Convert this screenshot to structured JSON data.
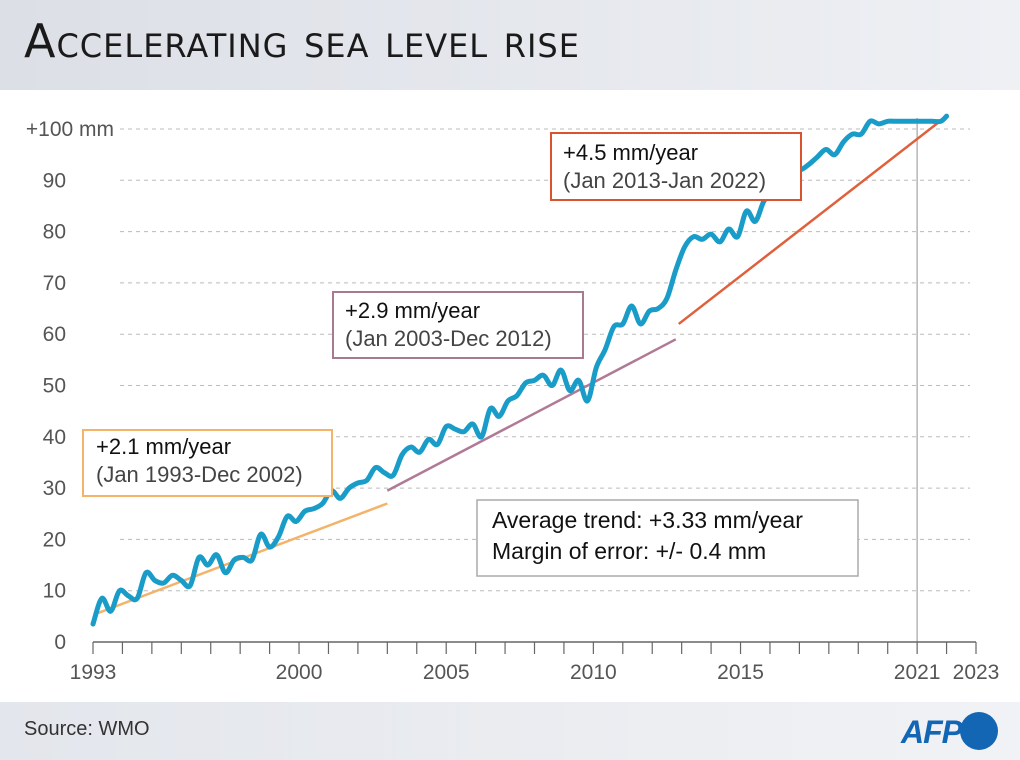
{
  "title": "Accelerating sea level rise",
  "source": "Source: WMO",
  "logo": "AFP",
  "colors": {
    "series": "#1a9cc9",
    "trend1": "#f3b46a",
    "trend2": "#b07a96",
    "trend3": "#e0603c",
    "box1": "#f3b46a",
    "box2": "#a87a90",
    "box3": "#d9542e",
    "grid": "#bbbbbb",
    "axis": "#666666",
    "logo": "#1266b3"
  },
  "chart_data": {
    "type": "line",
    "ylim": [
      0,
      100
    ],
    "xlim": [
      1993,
      2023
    ],
    "y_ticks": [
      0,
      10,
      20,
      30,
      40,
      50,
      60,
      70,
      80,
      90,
      100
    ],
    "y_tick_labels": [
      "0",
      "10",
      "20",
      "30",
      "40",
      "50",
      "60",
      "70",
      "80",
      "90",
      "+100 mm"
    ],
    "x_ticks": [
      1993,
      2000,
      2005,
      2010,
      2015,
      2021,
      2023
    ],
    "x_tick_labels": [
      "1993",
      "2000",
      "2005",
      "2010",
      "2015",
      "2021",
      "2023"
    ],
    "reference_line_x": 2021,
    "grid": "horizontal dashed",
    "series": [
      {
        "x": [
          1993.0,
          1993.3,
          1993.6,
          1993.9,
          1994.2,
          1994.5,
          1994.8,
          1995.1,
          1995.4,
          1995.7,
          1996.0,
          1996.3,
          1996.6,
          1996.9,
          1997.2,
          1997.5,
          1997.8,
          1998.1,
          1998.4,
          1998.7,
          1999.0,
          1999.3,
          1999.6,
          1999.9,
          2000.2,
          2000.5,
          2000.8,
          2001.1,
          2001.4,
          2001.7,
          2002.0,
          2002.3,
          2002.6,
          2002.9,
          2003.2,
          2003.5,
          2003.8,
          2004.1,
          2004.4,
          2004.7,
          2005.0,
          2005.3,
          2005.6,
          2005.9,
          2006.2,
          2006.5,
          2006.8,
          2007.1,
          2007.4,
          2007.7,
          2008.0,
          2008.3,
          2008.6,
          2008.9,
          2009.2,
          2009.5,
          2009.8,
          2010.1,
          2010.4,
          2010.7,
          2011.0,
          2011.3,
          2011.6,
          2011.9,
          2012.2,
          2012.5,
          2012.8,
          2013.1,
          2013.4,
          2013.7,
          2014.0,
          2014.3,
          2014.6,
          2014.9,
          2015.2,
          2015.5,
          2015.8,
          2016.1,
          2016.4,
          2016.7,
          2017.0,
          2017.3,
          2017.6,
          2017.9,
          2018.2,
          2018.5,
          2018.8,
          2019.1,
          2019.4,
          2019.7,
          2020.0,
          2020.3,
          2020.6,
          2020.9,
          2021.2,
          2021.5,
          2021.8,
          2022.0
        ],
        "values": [
          3.5,
          8.5,
          6,
          10,
          9,
          8.5,
          13.5,
          12,
          11.5,
          13,
          12,
          11,
          16.5,
          15,
          17,
          13.5,
          16,
          16.5,
          16,
          21,
          18.5,
          20.5,
          24.5,
          23.5,
          25.5,
          26,
          27,
          29.5,
          28,
          30,
          31,
          31.5,
          34,
          33,
          32.5,
          36.5,
          38,
          37,
          39.5,
          38.5,
          42,
          41.5,
          41,
          42.5,
          40,
          45.5,
          44,
          47,
          48,
          50.5,
          51,
          52,
          50,
          53,
          49,
          51,
          47,
          53.5,
          57,
          61.5,
          62,
          65.5,
          62,
          64.5,
          65,
          67,
          72.5,
          77,
          79,
          78.5,
          79.5,
          78,
          80.5,
          79,
          84,
          82,
          86,
          87.5,
          88,
          93,
          92,
          93,
          94.5,
          96,
          95,
          97.5,
          99,
          99,
          101.5,
          101,
          101.5,
          101.5,
          101.5,
          101.5,
          101.5,
          101.5,
          101.5,
          102.5
        ]
      }
    ],
    "trend_lines": [
      {
        "start": [
          1993.1,
          5.5
        ],
        "end": [
          2003.0,
          27
        ]
      },
      {
        "start": [
          2003.0,
          29.5
        ],
        "end": [
          2012.8,
          59
        ]
      },
      {
        "start": [
          2012.9,
          62
        ],
        "end": [
          2022.0,
          102.5
        ]
      }
    ]
  },
  "annotations": [
    {
      "rate": "+2.1 mm/year",
      "period": "(Jan 1993-Dec 2002)"
    },
    {
      "rate": "+2.9 mm/year",
      "period": "(Jan 2003-Dec 2012)"
    },
    {
      "rate": "+4.5 mm/year",
      "period": "(Jan 2013-Jan 2022)"
    }
  ],
  "average": {
    "trend": "Average trend:  +3.33 mm/year",
    "margin": "Margin of error: +/- 0.4 mm"
  }
}
